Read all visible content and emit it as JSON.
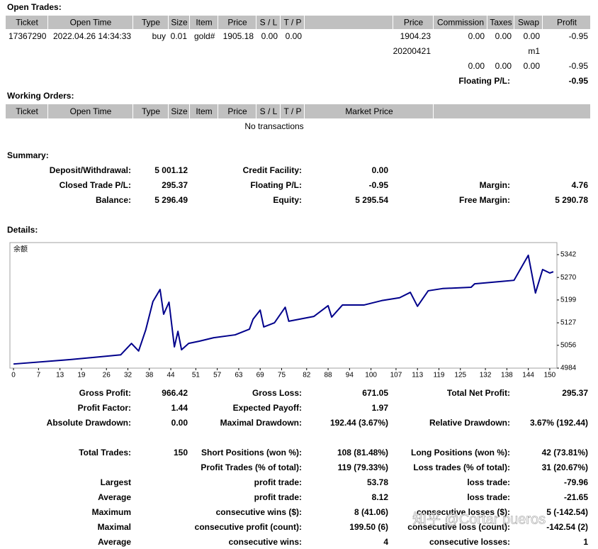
{
  "open_trades": {
    "title": "Open Trades:",
    "headers": {
      "0": "Ticket",
      "1": "Open Time",
      "2": "Type",
      "3": "Size",
      "4": "Item",
      "5": "Price",
      "6": "S / L",
      "7": "T / P",
      "9": "Price",
      "10": "Commission",
      "11": "Taxes",
      "12": "Swap",
      "13": "Profit"
    },
    "rows": [
      {
        "0": "17367290",
        "1": "2022.04.26 14:34:33",
        "2": "buy",
        "3": "0.01",
        "4": "gold#",
        "5": "1905.18",
        "6": "0.00",
        "7": "0.00",
        "9": "1904.23",
        "10": "0.00",
        "11": "0.00",
        "12": "0.00",
        "13": "-0.95"
      },
      {
        "9": "20200421",
        "12": "m1"
      },
      {
        "10": "0.00",
        "11": "0.00",
        "12": "0.00",
        "13": "-0.95"
      }
    ],
    "floating_label": "Floating P/L:",
    "floating_value": "-0.95"
  },
  "working_orders": {
    "title": "Working Orders:",
    "headers": {
      "0": "Ticket",
      "1": "Open Time",
      "2": "Type",
      "3": "Size",
      "4": "Item",
      "5": "Price",
      "6": "S / L",
      "7": "T / P",
      "8": "Market Price"
    },
    "empty": "No transactions"
  },
  "summary": {
    "title": "Summary:",
    "rows": [
      {
        "c1": [
          "Deposit/Withdrawal:",
          "5 001.12"
        ],
        "c2": [
          "Credit Facility:",
          "0.00"
        ]
      },
      {
        "c1": [
          "Closed Trade P/L:",
          "295.37"
        ],
        "c2": [
          "Floating P/L:",
          "-0.95"
        ],
        "c3": [
          "Margin:",
          "4.76"
        ]
      },
      {
        "c1": [
          "Balance:",
          "5 296.49"
        ],
        "c2": [
          "Equity:",
          "5 295.54"
        ],
        "c3": [
          "Free Margin:",
          "5 290.78"
        ]
      }
    ]
  },
  "details": {
    "title": "Details:",
    "stats": [
      {
        "c1": [
          "Gross Profit:",
          "966.42"
        ],
        "c2": [
          "Gross Loss:",
          "671.05"
        ],
        "c3": [
          "Total Net Profit:",
          "295.37"
        ]
      },
      {
        "c1": [
          "Profit Factor:",
          "1.44"
        ],
        "c2": [
          "Expected Payoff:",
          "1.97"
        ]
      },
      {
        "c1": [
          "Absolute Drawdown:",
          "0.00"
        ],
        "c2": [
          "Maximal Drawdown:",
          "192.44 (3.67%)"
        ],
        "c3": [
          "Relative Drawdown:",
          "3.67% (192.44)"
        ]
      },
      {
        "c1": [
          "Total Trades:",
          "150"
        ],
        "c2": [
          "Short Positions (won %):",
          "108 (81.48%)"
        ],
        "c3": [
          "Long Positions (won %):",
          "42 (73.81%)"
        ]
      },
      {
        "c2": [
          "Profit Trades (% of total):",
          "119 (79.33%)"
        ],
        "c3": [
          "Loss trades (% of total):",
          "31 (20.67%)"
        ]
      },
      {
        "c1": [
          "Largest"
        ],
        "c2": [
          "profit trade:",
          "53.78"
        ],
        "c3": [
          "loss trade:",
          "-79.96"
        ]
      },
      {
        "c1": [
          "Average"
        ],
        "c2": [
          "profit trade:",
          "8.12"
        ],
        "c3": [
          "loss trade:",
          "-21.65"
        ]
      },
      {
        "c1": [
          "Maximum"
        ],
        "c2": [
          "consecutive wins ($):",
          "8 (41.06)"
        ],
        "c3": [
          "consecutive losses ($):",
          "5 (-142.54)"
        ]
      },
      {
        "c1": [
          "Maximal"
        ],
        "c2": [
          "consecutive profit (count):",
          "199.50 (6)"
        ],
        "c3": [
          "consecutive loss (count):",
          "-142.54 (2)"
        ]
      },
      {
        "c1": [
          "Average"
        ],
        "c2": [
          "consecutive wins:",
          "4"
        ],
        "c3": [
          "consecutive losses:",
          "1"
        ]
      }
    ]
  },
  "chart_data": {
    "type": "line",
    "x": [
      0,
      16,
      30,
      33,
      35,
      37,
      39,
      41,
      42,
      43.5,
      45,
      46,
      47,
      49,
      52,
      56,
      62,
      66,
      67,
      69,
      70,
      73,
      76,
      77,
      84,
      88,
      89,
      92,
      98,
      103,
      108,
      111,
      113,
      116,
      120,
      128,
      129,
      136,
      140,
      144,
      146,
      148,
      150,
      151
    ],
    "series": [
      {
        "name": "余额",
        "color": "#00008b",
        "values": [
          4997,
          5011,
          5026,
          5062,
          5038,
          5105,
          5194,
          5232,
          5154,
          5192,
          5051,
          5100,
          5042,
          5062,
          5069,
          5080,
          5089,
          5107,
          5138,
          5167,
          5114,
          5127,
          5176,
          5132,
          5147,
          5181,
          5145,
          5183,
          5183,
          5197,
          5206,
          5223,
          5179,
          5228,
          5235,
          5239,
          5250,
          5257,
          5261,
          5340,
          5221,
          5295,
          5284,
          5288
        ]
      }
    ],
    "xlim": [
      -1,
      152
    ],
    "ylim": [
      4984,
      5380
    ],
    "xticks": [
      0,
      7,
      13,
      19,
      26,
      32,
      38,
      44,
      51,
      57,
      63,
      69,
      75,
      82,
      88,
      94,
      100,
      107,
      113,
      119,
      125,
      132,
      138,
      144,
      150
    ],
    "yticks": [
      4984,
      5056,
      5127,
      5199,
      5270,
      5342
    ]
  },
  "watermark": "知乎 @Cortar pueros"
}
